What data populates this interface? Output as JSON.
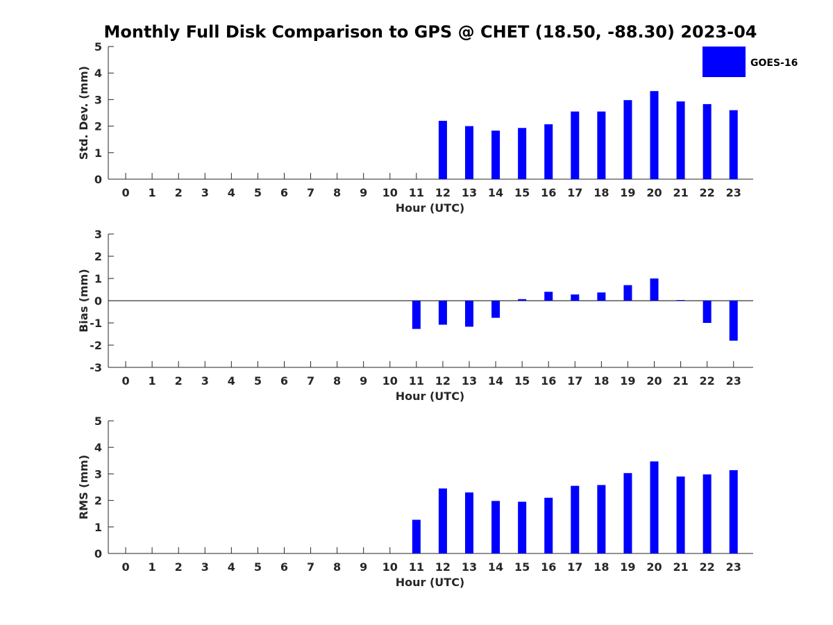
{
  "figure": {
    "title": "Monthly Full Disk Comparison to GPS @ CHET (18.50, -88.30) 2023-04"
  },
  "legend": {
    "label": "GOES-16",
    "color": "#0000ff",
    "position": "top-right"
  },
  "chart_data": [
    {
      "type": "bar",
      "xlabel": "Hour (UTC)",
      "ylabel": "Std. Dev. (mm)",
      "ylim": [
        0,
        5
      ],
      "yticks": [
        "0",
        "1",
        "2",
        "3",
        "4",
        "5"
      ],
      "categories": [
        "0",
        "1",
        "2",
        "3",
        "4",
        "5",
        "6",
        "7",
        "8",
        "9",
        "10",
        "11",
        "12",
        "13",
        "14",
        "15",
        "16",
        "17",
        "18",
        "19",
        "20",
        "21",
        "22",
        "23"
      ],
      "series": [
        {
          "name": "GOES-16",
          "color": "#0000ff",
          "values": [
            null,
            null,
            null,
            null,
            null,
            null,
            null,
            null,
            null,
            null,
            null,
            null,
            2.2,
            2.0,
            1.83,
            1.93,
            2.07,
            2.55,
            2.55,
            2.98,
            3.32,
            2.93,
            2.83,
            2.6
          ]
        }
      ]
    },
    {
      "type": "bar",
      "xlabel": "Hour (UTC)",
      "ylabel": "Bias (mm)",
      "ylim": [
        -3,
        3
      ],
      "yticks": [
        "-3",
        "-2",
        "-1",
        "0",
        "1",
        "2",
        "3"
      ],
      "zero_line": true,
      "categories": [
        "0",
        "1",
        "2",
        "3",
        "4",
        "5",
        "6",
        "7",
        "8",
        "9",
        "10",
        "11",
        "12",
        "13",
        "14",
        "15",
        "16",
        "17",
        "18",
        "19",
        "20",
        "21",
        "22",
        "23"
      ],
      "series": [
        {
          "name": "GOES-16",
          "color": "#0000ff",
          "values": [
            null,
            null,
            null,
            null,
            null,
            null,
            null,
            null,
            null,
            null,
            null,
            -1.27,
            -1.08,
            -1.17,
            -0.77,
            0.07,
            0.4,
            0.28,
            0.37,
            0.7,
            1.0,
            0.03,
            -1.0,
            -1.8
          ]
        }
      ]
    },
    {
      "type": "bar",
      "xlabel": "Hour (UTC)",
      "ylabel": "RMS (mm)",
      "ylim": [
        0,
        5
      ],
      "yticks": [
        "0",
        "1",
        "2",
        "3",
        "4",
        "5"
      ],
      "categories": [
        "0",
        "1",
        "2",
        "3",
        "4",
        "5",
        "6",
        "7",
        "8",
        "9",
        "10",
        "11",
        "12",
        "13",
        "14",
        "15",
        "16",
        "17",
        "18",
        "19",
        "20",
        "21",
        "22",
        "23"
      ],
      "series": [
        {
          "name": "GOES-16",
          "color": "#0000ff",
          "values": [
            null,
            null,
            null,
            null,
            null,
            null,
            null,
            null,
            null,
            null,
            null,
            1.27,
            2.45,
            2.3,
            1.98,
            1.95,
            2.1,
            2.55,
            2.58,
            3.03,
            3.47,
            2.9,
            2.98,
            3.14
          ]
        }
      ]
    }
  ]
}
